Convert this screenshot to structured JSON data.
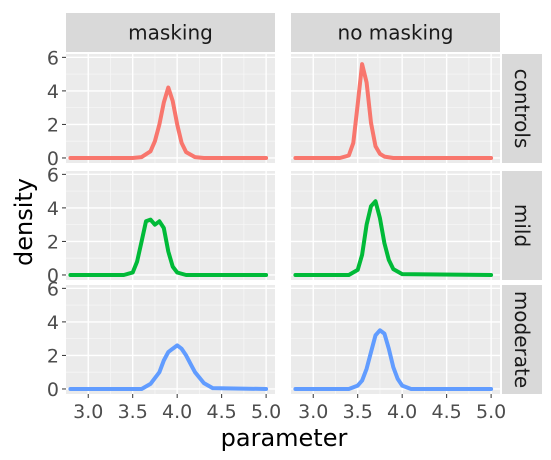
{
  "chart_data": {
    "type": "line",
    "subtype": "faceted density plot",
    "xlabel": "parameter",
    "ylabel": "density",
    "xlim": [
      2.75,
      5.1
    ],
    "ylim": [
      -0.3,
      6.2
    ],
    "x_ticks": [
      "3.0",
      "3.5",
      "4.0",
      "4.5",
      "5.0"
    ],
    "y_ticks": [
      "0",
      "2",
      "4",
      "6"
    ],
    "columns": [
      "masking",
      "no masking"
    ],
    "rows": [
      "controls",
      "mild",
      "moderate"
    ],
    "row_colors": {
      "controls": "#F8766D",
      "mild": "#00BA38",
      "moderate": "#619CFF"
    },
    "panel_background": "#ebebeb",
    "strip_background": "#d9d9d9",
    "grid": true,
    "legend": "none",
    "panels": [
      {
        "column": "masking",
        "row": "controls",
        "x": [
          2.8,
          3.5,
          3.6,
          3.7,
          3.75,
          3.8,
          3.85,
          3.9,
          3.95,
          4.0,
          4.05,
          4.1,
          4.2,
          4.3,
          5.0
        ],
        "y": [
          0,
          0,
          0.05,
          0.4,
          1.0,
          2.0,
          3.3,
          4.2,
          3.4,
          2.0,
          0.9,
          0.35,
          0.05,
          0,
          0
        ]
      },
      {
        "column": "no masking",
        "row": "controls",
        "x": [
          2.8,
          3.3,
          3.4,
          3.45,
          3.5,
          3.55,
          3.6,
          3.65,
          3.7,
          3.75,
          3.8,
          3.9,
          5.0
        ],
        "y": [
          0,
          0,
          0.15,
          0.9,
          3.2,
          5.6,
          4.5,
          2.1,
          0.7,
          0.25,
          0.08,
          0,
          0
        ]
      },
      {
        "column": "masking",
        "row": "mild",
        "x": [
          2.8,
          3.4,
          3.5,
          3.55,
          3.6,
          3.65,
          3.7,
          3.75,
          3.8,
          3.85,
          3.9,
          3.95,
          4.0,
          4.1,
          5.0
        ],
        "y": [
          0,
          0,
          0.15,
          0.8,
          2.0,
          3.2,
          3.3,
          3.0,
          3.2,
          2.8,
          1.4,
          0.5,
          0.15,
          0,
          0
        ]
      },
      {
        "column": "no masking",
        "row": "mild",
        "x": [
          2.8,
          3.4,
          3.5,
          3.55,
          3.6,
          3.65,
          3.7,
          3.75,
          3.8,
          3.85,
          3.9,
          4.0,
          5.0
        ],
        "y": [
          0,
          0,
          0.3,
          1.2,
          3.0,
          4.1,
          4.4,
          3.4,
          1.9,
          0.9,
          0.35,
          0.05,
          0
        ]
      },
      {
        "column": "masking",
        "row": "moderate",
        "x": [
          2.8,
          3.6,
          3.7,
          3.8,
          3.85,
          3.9,
          3.95,
          4.0,
          4.05,
          4.1,
          4.15,
          4.2,
          4.3,
          4.4,
          5.0
        ],
        "y": [
          0,
          0,
          0.3,
          1.0,
          1.7,
          2.2,
          2.4,
          2.6,
          2.4,
          2.0,
          1.5,
          1.0,
          0.35,
          0.05,
          0
        ]
      },
      {
        "column": "no masking",
        "row": "moderate",
        "x": [
          2.8,
          3.4,
          3.5,
          3.55,
          3.6,
          3.65,
          3.7,
          3.75,
          3.8,
          3.85,
          3.9,
          3.95,
          4.0,
          4.1,
          5.0
        ],
        "y": [
          0,
          0,
          0.2,
          0.5,
          1.2,
          2.2,
          3.2,
          3.5,
          3.3,
          2.4,
          1.3,
          0.6,
          0.2,
          0,
          0
        ]
      }
    ]
  }
}
